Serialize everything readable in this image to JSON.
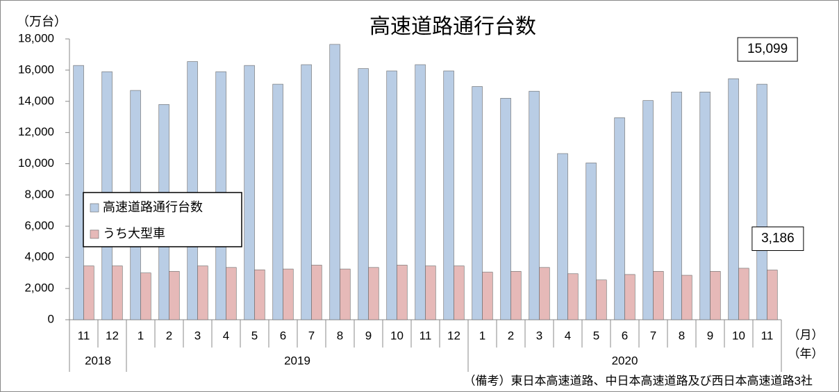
{
  "chart_data": {
    "type": "bar",
    "title": "高速道路通行台数",
    "y_unit": "（万台）",
    "x_unit": "（月）",
    "group_unit": "（年）",
    "note": "（備考）東日本高速道路、中日本高速道路及び西日本高速道路3社",
    "categories": [
      "11",
      "12",
      "1",
      "2",
      "3",
      "4",
      "5",
      "6",
      "7",
      "8",
      "9",
      "10",
      "11",
      "12",
      "1",
      "2",
      "3",
      "4",
      "5",
      "6",
      "7",
      "8",
      "9",
      "10",
      "11"
    ],
    "groups": [
      "2018",
      "2019",
      "2020"
    ],
    "series": [
      {
        "name": "高速道路通行台数",
        "color": "#b9cde5",
        "values": [
          16300,
          15900,
          14700,
          13800,
          16550,
          15900,
          16300,
          15100,
          16350,
          17650,
          16100,
          15950,
          16350,
          15950,
          14950,
          14200,
          14650,
          10650,
          10050,
          12950,
          14050,
          14600,
          14600,
          15450,
          15099
        ],
        "value_labels": [
          null,
          null,
          null,
          null,
          null,
          null,
          null,
          null,
          null,
          null,
          null,
          null,
          null,
          null,
          null,
          null,
          null,
          null,
          null,
          null,
          null,
          null,
          null,
          null,
          "15,099"
        ]
      },
      {
        "name": "うち大型車",
        "color": "#e6b9b8",
        "values": [
          3450,
          3450,
          3000,
          3100,
          3450,
          3350,
          3200,
          3250,
          3500,
          3250,
          3350,
          3500,
          3450,
          3450,
          3050,
          3100,
          3350,
          2950,
          2550,
          2900,
          3100,
          2850,
          3100,
          3300,
          3186
        ],
        "value_labels": [
          null,
          null,
          null,
          null,
          null,
          null,
          null,
          null,
          null,
          null,
          null,
          null,
          null,
          null,
          null,
          null,
          null,
          null,
          null,
          null,
          null,
          null,
          null,
          null,
          "3,186"
        ]
      }
    ],
    "ylim": [
      0,
      18000
    ],
    "yticks": [
      0,
      {
        "value": 2000,
        "label": "2,000"
      },
      {
        "value": 4000,
        "label": "4,000"
      },
      {
        "value": 6000,
        "label": "6,000"
      },
      {
        "value": 8000,
        "label": "8,000"
      },
      {
        "value": 10000,
        "label": "10,000"
      },
      {
        "value": 12000,
        "label": "12,000"
      },
      {
        "value": 14000,
        "label": "14,000"
      },
      {
        "value": 16000,
        "label": "16,000"
      },
      {
        "value": 18000,
        "label": "18,000"
      }
    ],
    "grid": false,
    "legend": "middle-left"
  }
}
